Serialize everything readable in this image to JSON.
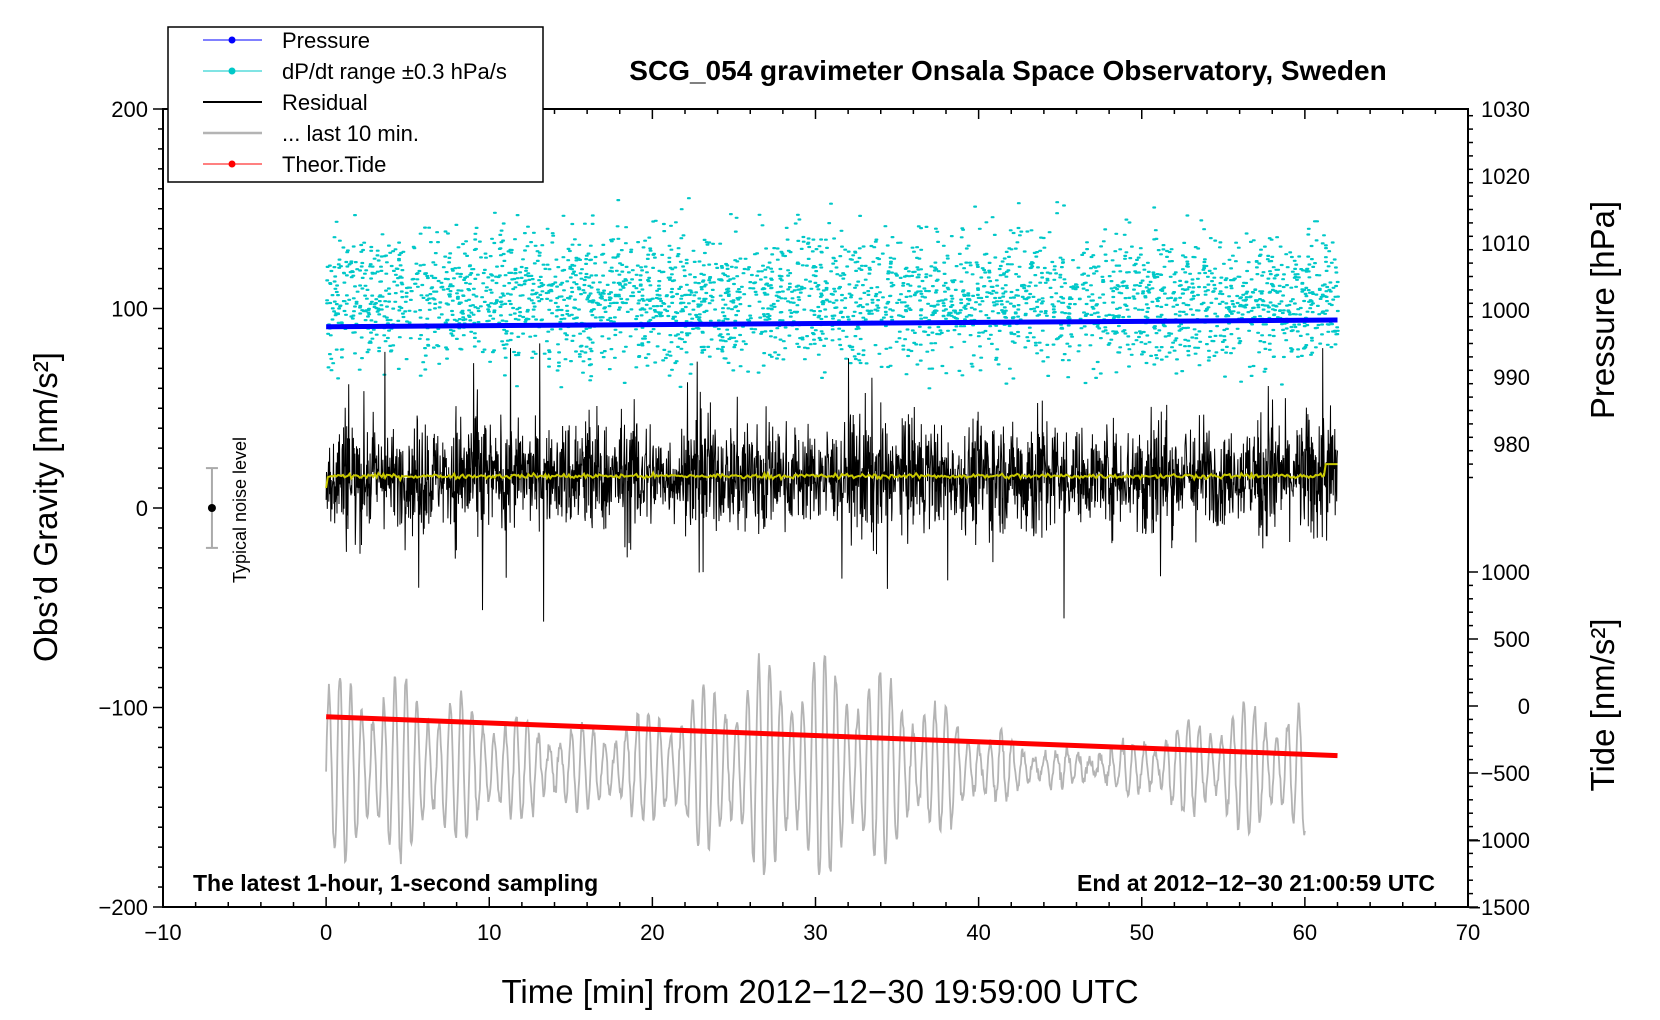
{
  "chart_data": {
    "type": "line",
    "title": "SCG_054 gravimeter Onsala Space Observatory, Sweden",
    "xlabel": "Time [min] from 2012−12−30 19:59:00 UTC",
    "ylabel_left": "Obs’d Gravity [nm/s²]",
    "ylabel_right_top": "Pressure [hPa]",
    "ylabel_right_bottom": "Tide [nm/s²]",
    "xlim": [
      -10,
      70
    ],
    "ylim": [
      -200,
      200
    ],
    "pressure_axis_range": [
      975,
      1030
    ],
    "tide_axis_range": [
      -1500,
      1100
    ],
    "x_ticks": [
      "−10",
      "0",
      "10",
      "20",
      "30",
      "40",
      "50",
      "60",
      "70"
    ],
    "y_ticks": [
      "200",
      "100",
      "0",
      "−100",
      "−200"
    ],
    "pressure_ticks": [
      "1030",
      "1020",
      "1010",
      "1000",
      "990",
      "980"
    ],
    "tide_ticks": [
      "1000",
      "500",
      "0",
      "−500",
      "−1000",
      "−1500"
    ],
    "bottom_left_note": "The latest 1-hour, 1-second sampling",
    "bottom_right_note": "End at 2012−12−30 21:00:59 UTC",
    "noise_label": "Typical noise level",
    "noise_bar": {
      "x": -7,
      "center": 0,
      "half_range": 20
    },
    "legend": [
      {
        "label": "Pressure",
        "color": "#0000ff",
        "marker": true
      },
      {
        "label": "dP/dt range ±0.3 hPa/s",
        "color": "#00c8c8",
        "marker": true
      },
      {
        "label": "Residual",
        "color": "#000000",
        "marker": false
      },
      {
        "label": "... last 10 min.",
        "color": "#b4b4b4",
        "marker": false
      },
      {
        "label": "Theor.Tide",
        "color": "#ff0000",
        "marker": true
      }
    ],
    "series": [
      {
        "name": "Pressure",
        "axis": "pressure",
        "color": "#0000ff",
        "x": [
          0,
          62
        ],
        "values": [
          997.5,
          998.5
        ]
      },
      {
        "name": "Theor.Tide",
        "axis": "tide",
        "color": "#ff0000",
        "x": [
          0,
          62
        ],
        "values": [
          -80,
          -370
        ]
      },
      {
        "name": "dP/dt range ±0.3 hPa/s",
        "axis": "left",
        "color": "#00c8c8",
        "type": "scatter",
        "x_range": [
          0,
          62
        ],
        "center": 105,
        "spread": 40
      },
      {
        "name": "Residual",
        "axis": "left",
        "color": "#000000",
        "x_range": [
          0,
          62
        ],
        "center": 16,
        "amplitude": 50
      },
      {
        "name": "Residual mean",
        "axis": "left",
        "color": "#c8c800",
        "x_range": [
          0,
          62
        ],
        "center": 16
      },
      {
        "name": "... last 10 min.",
        "axis": "left",
        "color": "#b4b4b4",
        "x_range": [
          0,
          60
        ],
        "center": -130,
        "amplitude": 40
      }
    ]
  }
}
